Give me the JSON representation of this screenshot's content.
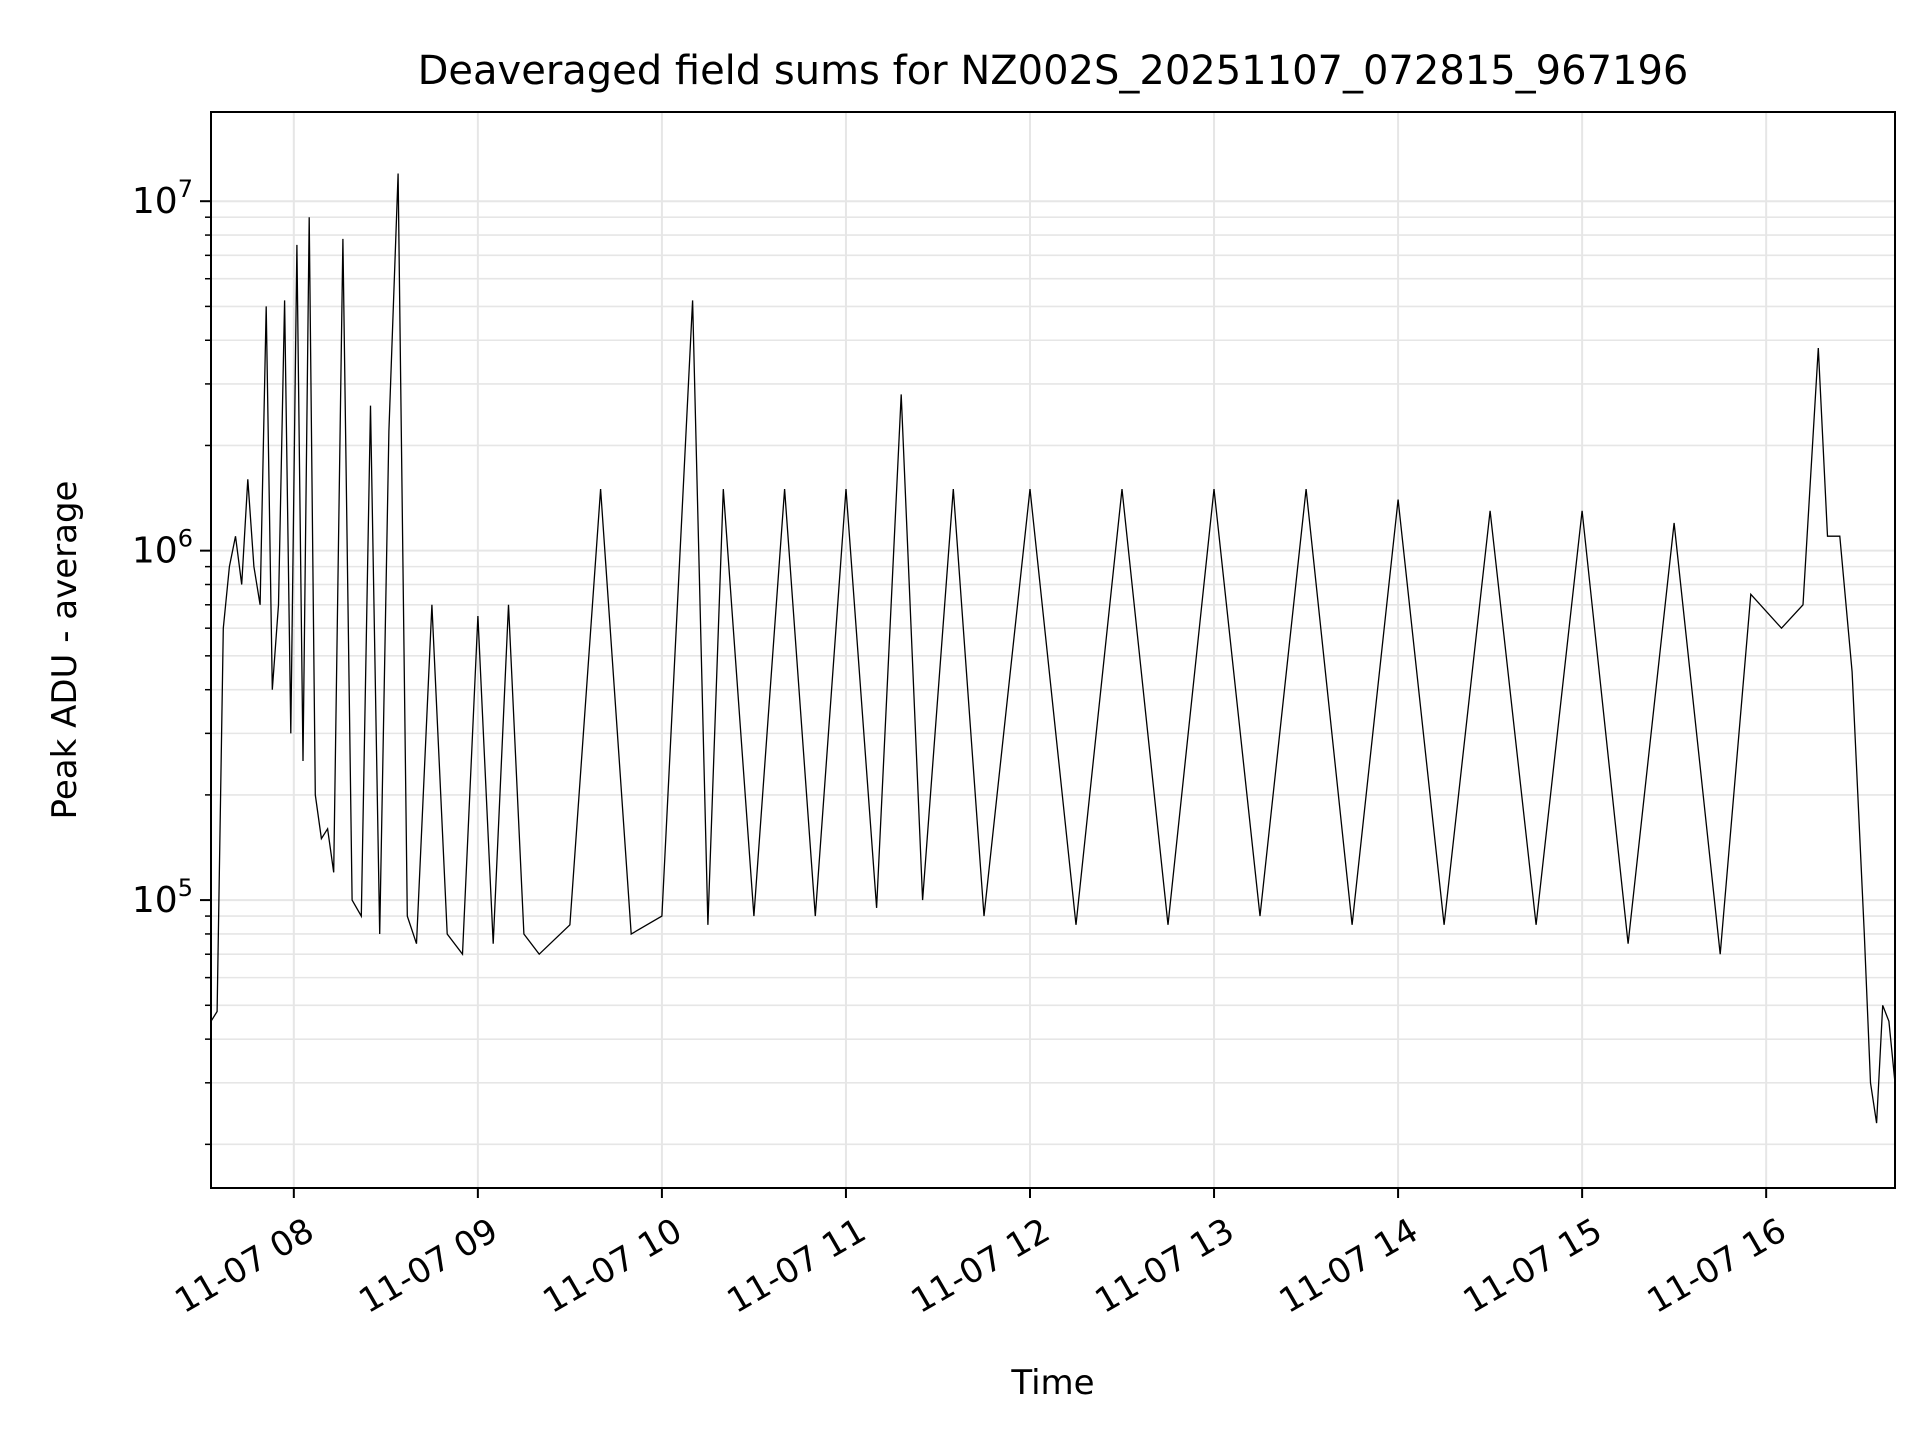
{
  "chart_data": {
    "type": "line",
    "title": "Deaveraged field sums for NZ002S_20251107_072815_967196",
    "xlabel": "Time",
    "ylabel": "Peak ADU - average",
    "yscale": "log",
    "xlim": [
      "2025-11-07T07:33",
      "2025-11-07T16:42"
    ],
    "ylim": [
      15000,
      18000000
    ],
    "grid": true,
    "line_color": "#000000",
    "grid_color": "#e6e6e6",
    "xticks": [
      {
        "t": "2025-11-07T08:00",
        "label": "11-07 08"
      },
      {
        "t": "2025-11-07T09:00",
        "label": "11-07 09"
      },
      {
        "t": "2025-11-07T10:00",
        "label": "11-07 10"
      },
      {
        "t": "2025-11-07T11:00",
        "label": "11-07 11"
      },
      {
        "t": "2025-11-07T12:00",
        "label": "11-07 12"
      },
      {
        "t": "2025-11-07T13:00",
        "label": "11-07 13"
      },
      {
        "t": "2025-11-07T14:00",
        "label": "11-07 14"
      },
      {
        "t": "2025-11-07T15:00",
        "label": "11-07 15"
      },
      {
        "t": "2025-11-07T16:00",
        "label": "11-07 16"
      }
    ],
    "yticks": [
      {
        "value": 100000,
        "base": "10",
        "exp": "5"
      },
      {
        "value": 1000000,
        "base": "10",
        "exp": "6"
      },
      {
        "value": 10000000,
        "base": "10",
        "exp": "7"
      }
    ],
    "series": [
      {
        "x": [
          "2025-11-07T07:33",
          "2025-11-07T07:35",
          "2025-11-07T07:37",
          "2025-11-07T07:39",
          "2025-11-07T07:41",
          "2025-11-07T07:43",
          "2025-11-07T07:45",
          "2025-11-07T07:47",
          "2025-11-07T07:49",
          "2025-11-07T07:51",
          "2025-11-07T07:53",
          "2025-11-07T07:55",
          "2025-11-07T07:57",
          "2025-11-07T07:59",
          "2025-11-07T08:01",
          "2025-11-07T08:03",
          "2025-11-07T08:05",
          "2025-11-07T08:07",
          "2025-11-07T08:09",
          "2025-11-07T08:11",
          "2025-11-07T08:13",
          "2025-11-07T08:16",
          "2025-11-07T08:19",
          "2025-11-07T08:22",
          "2025-11-07T08:25",
          "2025-11-07T08:28",
          "2025-11-07T08:31",
          "2025-11-07T08:34",
          "2025-11-07T08:37",
          "2025-11-07T08:40",
          "2025-11-07T08:45",
          "2025-11-07T08:50",
          "2025-11-07T08:55",
          "2025-11-07T09:00",
          "2025-11-07T09:05",
          "2025-11-07T09:10",
          "2025-11-07T09:15",
          "2025-11-07T09:20",
          "2025-11-07T09:30",
          "2025-11-07T09:40",
          "2025-11-07T09:50",
          "2025-11-07T10:00",
          "2025-11-07T10:10",
          "2025-11-07T10:15",
          "2025-11-07T10:20",
          "2025-11-07T10:30",
          "2025-11-07T10:40",
          "2025-11-07T10:50",
          "2025-11-07T11:00",
          "2025-11-07T11:10",
          "2025-11-07T11:18",
          "2025-11-07T11:25",
          "2025-11-07T11:35",
          "2025-11-07T11:45",
          "2025-11-07T12:00",
          "2025-11-07T12:15",
          "2025-11-07T12:30",
          "2025-11-07T12:45",
          "2025-11-07T13:00",
          "2025-11-07T13:15",
          "2025-11-07T13:30",
          "2025-11-07T13:45",
          "2025-11-07T14:00",
          "2025-11-07T14:15",
          "2025-11-07T14:30",
          "2025-11-07T14:45",
          "2025-11-07T15:00",
          "2025-11-07T15:15",
          "2025-11-07T15:30",
          "2025-11-07T15:45",
          "2025-11-07T15:55",
          "2025-11-07T16:05",
          "2025-11-07T16:12",
          "2025-11-07T16:17",
          "2025-11-07T16:20",
          "2025-11-07T16:24",
          "2025-11-07T16:28",
          "2025-11-07T16:32",
          "2025-11-07T16:34",
          "2025-11-07T16:36",
          "2025-11-07T16:38",
          "2025-11-07T16:40",
          "2025-11-07T16:42"
        ],
        "y": [
          45000,
          48000,
          600000,
          900000,
          1100000,
          800000,
          1600000,
          900000,
          700000,
          5000000,
          400000,
          700000,
          5200000,
          300000,
          7500000,
          250000,
          9000000,
          200000,
          150000,
          160000,
          120000,
          7800000,
          100000,
          90000,
          2600000,
          80000,
          2200000,
          12000000,
          90000,
          75000,
          700000,
          80000,
          70000,
          650000,
          75000,
          700000,
          80000,
          70000,
          85000,
          1500000,
          80000,
          90000,
          5200000,
          85000,
          1500000,
          90000,
          1500000,
          90000,
          1500000,
          95000,
          2800000,
          100000,
          1500000,
          90000,
          1500000,
          85000,
          1500000,
          85000,
          1500000,
          90000,
          1500000,
          85000,
          1400000,
          85000,
          1300000,
          85000,
          1300000,
          75000,
          1200000,
          70000,
          750000,
          600000,
          700000,
          3800000,
          1100000,
          1100000,
          450000,
          80000,
          30000,
          23000,
          50000,
          45000,
          30000
        ]
      }
    ]
  }
}
